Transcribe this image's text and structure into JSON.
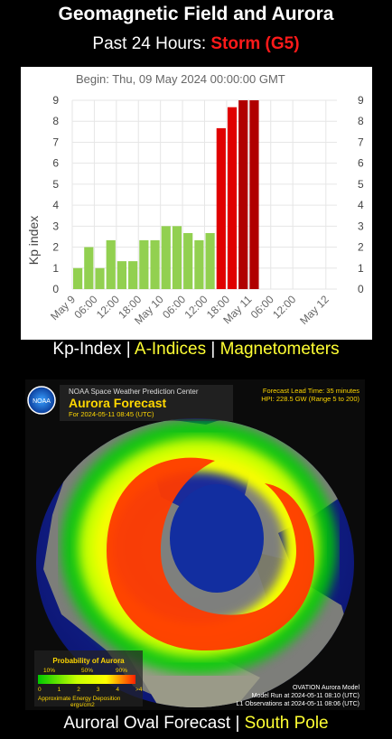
{
  "header": {
    "title": "Geomagnetic Field and Aurora",
    "subtitle_prefix": "Past 24 Hours:",
    "status": "Storm (G5)"
  },
  "colors": {
    "storm_red": "#ff1a1a",
    "link_yellow": "#ffff33",
    "bar_green": "#92d050",
    "bar_red": "#e00000",
    "bar_darkred": "#b00000"
  },
  "chart_data": {
    "type": "bar",
    "title": "Begin: Thu, 09 May 2024 00:00:00 GMT",
    "ylabel": "Kp index",
    "ylim": [
      0,
      9
    ],
    "yticks": [
      0,
      1,
      2,
      3,
      4,
      5,
      6,
      7,
      8,
      9
    ],
    "xticks": [
      "May 9",
      "06:00",
      "12:00",
      "18:00",
      "May 10",
      "06:00",
      "12:00",
      "18:00",
      "May 11",
      "06:00",
      "12:00",
      "May 12"
    ],
    "values": [
      1.0,
      2.0,
      1.0,
      2.33,
      1.33,
      1.33,
      2.33,
      2.33,
      3.0,
      3.0,
      2.67,
      2.33,
      2.67,
      7.67,
      8.67,
      9.0,
      9.0
    ],
    "grid": true
  },
  "links1": {
    "kp": "Kp-Index",
    "a": "A-Indices",
    "mag": "Magnetometers",
    "sep": "|"
  },
  "aurora": {
    "org": "NOAA Space Weather Prediction Center",
    "name": "Aurora Forecast",
    "for": "For 2024-05-11 08:45 (UTC)",
    "lead": "Forecast Lead Time:  35 minutes",
    "hpi": "HPI: 228.5 GW (Range 5 to 200)",
    "noaa": "NOAA",
    "prob_title": "Probability of Aurora",
    "p10": "10%",
    "p50": "50%",
    "p90": "90%",
    "scale": [
      "0",
      "1",
      "2",
      "3",
      "4",
      ">4"
    ],
    "energy": "Approximate Energy Deposition",
    "units": "ergs/cm2",
    "model": "OVATION Aurora Model",
    "run": "Model Run at 2024-05-11 08:10 (UTC)",
    "obs": "L1 Observations at 2024-05-11 08:06 (UTC)"
  },
  "links2": {
    "oval": "Auroral Oval Forecast",
    "south": "South Pole",
    "sep": "|"
  }
}
